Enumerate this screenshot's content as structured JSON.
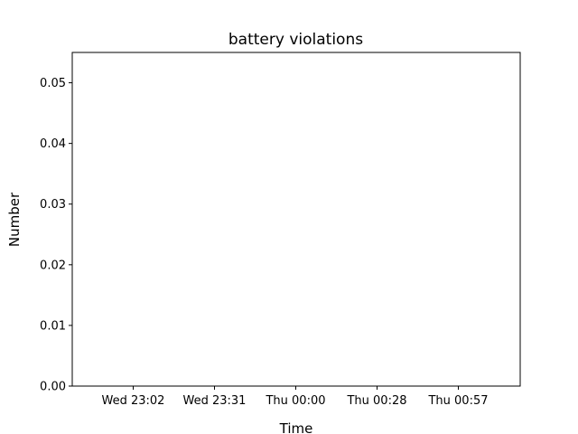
{
  "chart_data": {
    "type": "line",
    "title": "battery violations",
    "xlabel": "Time",
    "ylabel": "Number",
    "x_tick_labels": [
      "Wed 23:02",
      "Wed 23:31",
      "Thu 00:00",
      "Thu 00:28",
      "Thu 00:57"
    ],
    "y_tick_labels": [
      "0.00",
      "0.01",
      "0.02",
      "0.03",
      "0.04",
      "0.05"
    ],
    "y_ticks": [
      0,
      0.01,
      0.02,
      0.03,
      0.04,
      0.05
    ],
    "ylim": [
      0,
      0.055
    ],
    "series": [],
    "grid": false,
    "legend": "none"
  }
}
